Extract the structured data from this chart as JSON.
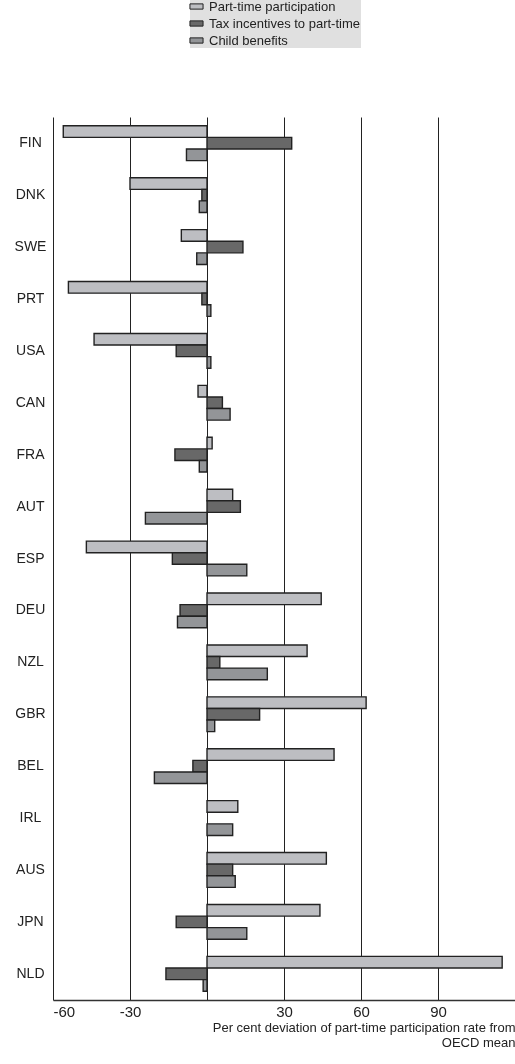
{
  "chart_data": {
    "type": "bar",
    "orientation": "horizontal",
    "xlabel": "Per cent deviation of part-time participation rate from OECD mean",
    "categories": [
      "FIN",
      "DNK",
      "SWE",
      "PRT",
      "USA",
      "CAN",
      "FRA",
      "AUT",
      "ESP",
      "DEU",
      "NZL",
      "GBR",
      "BEL",
      "IRL",
      "AUS",
      "JPN",
      "NLD"
    ],
    "series": [
      {
        "name": "Part-time participation",
        "color": "#bdbec2",
        "values": [
          -56,
          -30,
          -10,
          -54,
          -44,
          -3.5,
          2,
          10,
          -47,
          44.5,
          39,
          62,
          49.5,
          12,
          46.5,
          44,
          115
        ]
      },
      {
        "name": "Tax incentives to part-time",
        "color": "#686868",
        "values": [
          33,
          -2,
          14,
          -2,
          -12,
          6,
          -12.5,
          13,
          -13.5,
          -10.5,
          5,
          20.5,
          -5.5,
          null,
          10,
          -12,
          -16
        ]
      },
      {
        "name": "Child benefits",
        "color": "#939598",
        "values": [
          -8,
          -3,
          -4,
          1.5,
          1.5,
          9,
          -3,
          -24,
          15.5,
          -11.5,
          23.5,
          3,
          -20.5,
          10,
          11,
          15.5,
          -1.5
        ]
      }
    ],
    "xlim": [
      -60,
      120
    ],
    "xticks": [
      -60,
      -30,
      {
        "value": 0,
        "label": null
      },
      30,
      60,
      90
    ],
    "grid": "x",
    "legend": "top right"
  }
}
